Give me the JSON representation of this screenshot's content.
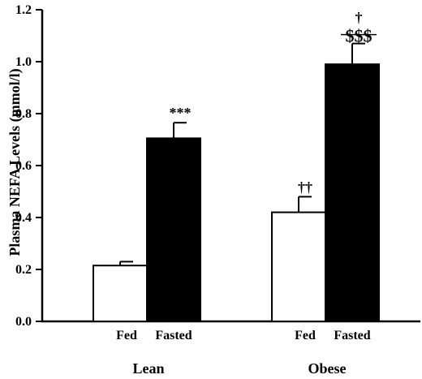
{
  "chart_data": {
    "type": "bar",
    "title": "",
    "ylabel": "Plasma NEFA Levels (mmol/l)",
    "xlabel": "",
    "ylim": [
      0,
      1.2
    ],
    "yticks": [
      "0.0",
      "0.2",
      "0.4",
      "0.6",
      "0.8",
      "1.0",
      "1.2"
    ],
    "grid": false,
    "legend": "none",
    "groups": [
      {
        "name": "Lean",
        "bars": [
          {
            "label": "Fed",
            "value": 0.215,
            "error": 0.015,
            "fill": "#ffffff",
            "annotation": ""
          },
          {
            "label": "Fasted",
            "value": 0.705,
            "error": 0.06,
            "fill": "#000000",
            "annotation": "***"
          }
        ]
      },
      {
        "name": "Obese",
        "bars": [
          {
            "label": "Fed",
            "value": 0.42,
            "error": 0.06,
            "fill": "#ffffff",
            "annotation": "††"
          },
          {
            "label": "Fasted",
            "value": 0.99,
            "error": 0.08,
            "fill": "#000000",
            "annotation": "$$$",
            "annotation_top": "†"
          }
        ]
      }
    ]
  }
}
